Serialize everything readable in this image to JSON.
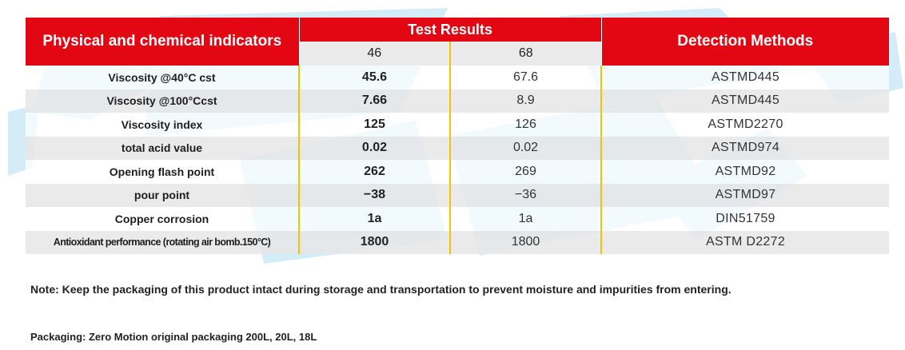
{
  "table": {
    "header": {
      "indicators": "Physical and chemical indicators",
      "test_results": "Test Results",
      "detection_methods": "Detection Methods",
      "grade_46": "46",
      "grade_68": "68"
    },
    "rows": [
      {
        "indicator": "Viscosity @40°C cst",
        "v46": "45.6",
        "v68": "67.6",
        "method": "ASTMD445"
      },
      {
        "indicator": "Viscosity @100°Ccst",
        "v46": "7.66",
        "v68": "8.9",
        "method": "ASTMD445"
      },
      {
        "indicator": "Viscosity index",
        "v46": "125",
        "v68": "126",
        "method": "ASTMD2270"
      },
      {
        "indicator": "total acid value",
        "v46": "0.02",
        "v68": "0.02",
        "method": "ASTMD974"
      },
      {
        "indicator": "Opening flash point",
        "v46": "262",
        "v68": "269",
        "method": "ASTMD92"
      },
      {
        "indicator": "pour point",
        "v46": "−38",
        "v68": "−36",
        "method": "ASTMD97"
      },
      {
        "indicator": "Copper corrosion",
        "v46": "1a",
        "v68": "1a",
        "method": "DIN51759"
      },
      {
        "indicator": "Antioxidant performance (rotating air bomb.150°C)",
        "v46": "1800",
        "v68": "1800",
        "method": "ASTM D2272"
      }
    ]
  },
  "note": "Note: Keep the packaging of this product intact during storage and transportation to prevent moisture and impurities from entering.",
  "packaging": "Packaging: Zero Motion original packaging 200L, 20L, 18L",
  "colors": {
    "header_red": "#e30613",
    "column_divider": "#f2c400",
    "row_stripe": "#e7e7e7",
    "watermark": "#bfe3f5"
  }
}
